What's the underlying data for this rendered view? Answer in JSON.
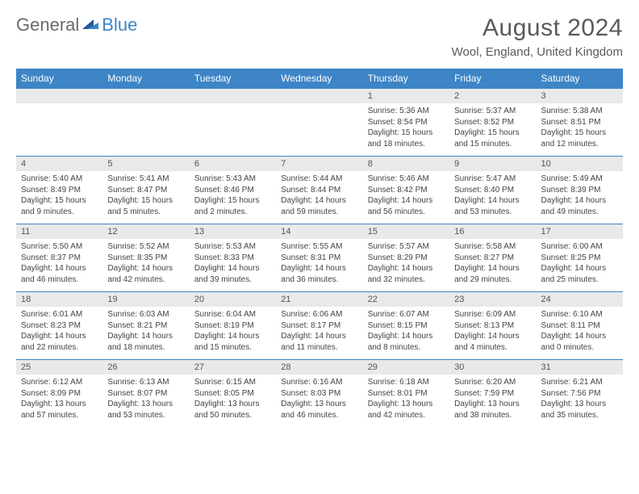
{
  "brand": {
    "part1": "General",
    "part2": "Blue"
  },
  "title": "August 2024",
  "location": "Wool, England, United Kingdom",
  "colors": {
    "header_bg": "#3d85c6",
    "header_text": "#ffffff",
    "daynum_bg": "#e9e9e9",
    "border": "#3d85c6",
    "text": "#444444",
    "title_text": "#5a5a5a"
  },
  "day_headers": [
    "Sunday",
    "Monday",
    "Tuesday",
    "Wednesday",
    "Thursday",
    "Friday",
    "Saturday"
  ],
  "weeks": [
    [
      {
        "n": "",
        "sunrise": "",
        "sunset": "",
        "daylight": ""
      },
      {
        "n": "",
        "sunrise": "",
        "sunset": "",
        "daylight": ""
      },
      {
        "n": "",
        "sunrise": "",
        "sunset": "",
        "daylight": ""
      },
      {
        "n": "",
        "sunrise": "",
        "sunset": "",
        "daylight": ""
      },
      {
        "n": "1",
        "sunrise": "Sunrise: 5:36 AM",
        "sunset": "Sunset: 8:54 PM",
        "daylight": "Daylight: 15 hours and 18 minutes."
      },
      {
        "n": "2",
        "sunrise": "Sunrise: 5:37 AM",
        "sunset": "Sunset: 8:52 PM",
        "daylight": "Daylight: 15 hours and 15 minutes."
      },
      {
        "n": "3",
        "sunrise": "Sunrise: 5:38 AM",
        "sunset": "Sunset: 8:51 PM",
        "daylight": "Daylight: 15 hours and 12 minutes."
      }
    ],
    [
      {
        "n": "4",
        "sunrise": "Sunrise: 5:40 AM",
        "sunset": "Sunset: 8:49 PM",
        "daylight": "Daylight: 15 hours and 9 minutes."
      },
      {
        "n": "5",
        "sunrise": "Sunrise: 5:41 AM",
        "sunset": "Sunset: 8:47 PM",
        "daylight": "Daylight: 15 hours and 5 minutes."
      },
      {
        "n": "6",
        "sunrise": "Sunrise: 5:43 AM",
        "sunset": "Sunset: 8:46 PM",
        "daylight": "Daylight: 15 hours and 2 minutes."
      },
      {
        "n": "7",
        "sunrise": "Sunrise: 5:44 AM",
        "sunset": "Sunset: 8:44 PM",
        "daylight": "Daylight: 14 hours and 59 minutes."
      },
      {
        "n": "8",
        "sunrise": "Sunrise: 5:46 AM",
        "sunset": "Sunset: 8:42 PM",
        "daylight": "Daylight: 14 hours and 56 minutes."
      },
      {
        "n": "9",
        "sunrise": "Sunrise: 5:47 AM",
        "sunset": "Sunset: 8:40 PM",
        "daylight": "Daylight: 14 hours and 53 minutes."
      },
      {
        "n": "10",
        "sunrise": "Sunrise: 5:49 AM",
        "sunset": "Sunset: 8:39 PM",
        "daylight": "Daylight: 14 hours and 49 minutes."
      }
    ],
    [
      {
        "n": "11",
        "sunrise": "Sunrise: 5:50 AM",
        "sunset": "Sunset: 8:37 PM",
        "daylight": "Daylight: 14 hours and 46 minutes."
      },
      {
        "n": "12",
        "sunrise": "Sunrise: 5:52 AM",
        "sunset": "Sunset: 8:35 PM",
        "daylight": "Daylight: 14 hours and 42 minutes."
      },
      {
        "n": "13",
        "sunrise": "Sunrise: 5:53 AM",
        "sunset": "Sunset: 8:33 PM",
        "daylight": "Daylight: 14 hours and 39 minutes."
      },
      {
        "n": "14",
        "sunrise": "Sunrise: 5:55 AM",
        "sunset": "Sunset: 8:31 PM",
        "daylight": "Daylight: 14 hours and 36 minutes."
      },
      {
        "n": "15",
        "sunrise": "Sunrise: 5:57 AM",
        "sunset": "Sunset: 8:29 PM",
        "daylight": "Daylight: 14 hours and 32 minutes."
      },
      {
        "n": "16",
        "sunrise": "Sunrise: 5:58 AM",
        "sunset": "Sunset: 8:27 PM",
        "daylight": "Daylight: 14 hours and 29 minutes."
      },
      {
        "n": "17",
        "sunrise": "Sunrise: 6:00 AM",
        "sunset": "Sunset: 8:25 PM",
        "daylight": "Daylight: 14 hours and 25 minutes."
      }
    ],
    [
      {
        "n": "18",
        "sunrise": "Sunrise: 6:01 AM",
        "sunset": "Sunset: 8:23 PM",
        "daylight": "Daylight: 14 hours and 22 minutes."
      },
      {
        "n": "19",
        "sunrise": "Sunrise: 6:03 AM",
        "sunset": "Sunset: 8:21 PM",
        "daylight": "Daylight: 14 hours and 18 minutes."
      },
      {
        "n": "20",
        "sunrise": "Sunrise: 6:04 AM",
        "sunset": "Sunset: 8:19 PM",
        "daylight": "Daylight: 14 hours and 15 minutes."
      },
      {
        "n": "21",
        "sunrise": "Sunrise: 6:06 AM",
        "sunset": "Sunset: 8:17 PM",
        "daylight": "Daylight: 14 hours and 11 minutes."
      },
      {
        "n": "22",
        "sunrise": "Sunrise: 6:07 AM",
        "sunset": "Sunset: 8:15 PM",
        "daylight": "Daylight: 14 hours and 8 minutes."
      },
      {
        "n": "23",
        "sunrise": "Sunrise: 6:09 AM",
        "sunset": "Sunset: 8:13 PM",
        "daylight": "Daylight: 14 hours and 4 minutes."
      },
      {
        "n": "24",
        "sunrise": "Sunrise: 6:10 AM",
        "sunset": "Sunset: 8:11 PM",
        "daylight": "Daylight: 14 hours and 0 minutes."
      }
    ],
    [
      {
        "n": "25",
        "sunrise": "Sunrise: 6:12 AM",
        "sunset": "Sunset: 8:09 PM",
        "daylight": "Daylight: 13 hours and 57 minutes."
      },
      {
        "n": "26",
        "sunrise": "Sunrise: 6:13 AM",
        "sunset": "Sunset: 8:07 PM",
        "daylight": "Daylight: 13 hours and 53 minutes."
      },
      {
        "n": "27",
        "sunrise": "Sunrise: 6:15 AM",
        "sunset": "Sunset: 8:05 PM",
        "daylight": "Daylight: 13 hours and 50 minutes."
      },
      {
        "n": "28",
        "sunrise": "Sunrise: 6:16 AM",
        "sunset": "Sunset: 8:03 PM",
        "daylight": "Daylight: 13 hours and 46 minutes."
      },
      {
        "n": "29",
        "sunrise": "Sunrise: 6:18 AM",
        "sunset": "Sunset: 8:01 PM",
        "daylight": "Daylight: 13 hours and 42 minutes."
      },
      {
        "n": "30",
        "sunrise": "Sunrise: 6:20 AM",
        "sunset": "Sunset: 7:59 PM",
        "daylight": "Daylight: 13 hours and 38 minutes."
      },
      {
        "n": "31",
        "sunrise": "Sunrise: 6:21 AM",
        "sunset": "Sunset: 7:56 PM",
        "daylight": "Daylight: 13 hours and 35 minutes."
      }
    ]
  ]
}
